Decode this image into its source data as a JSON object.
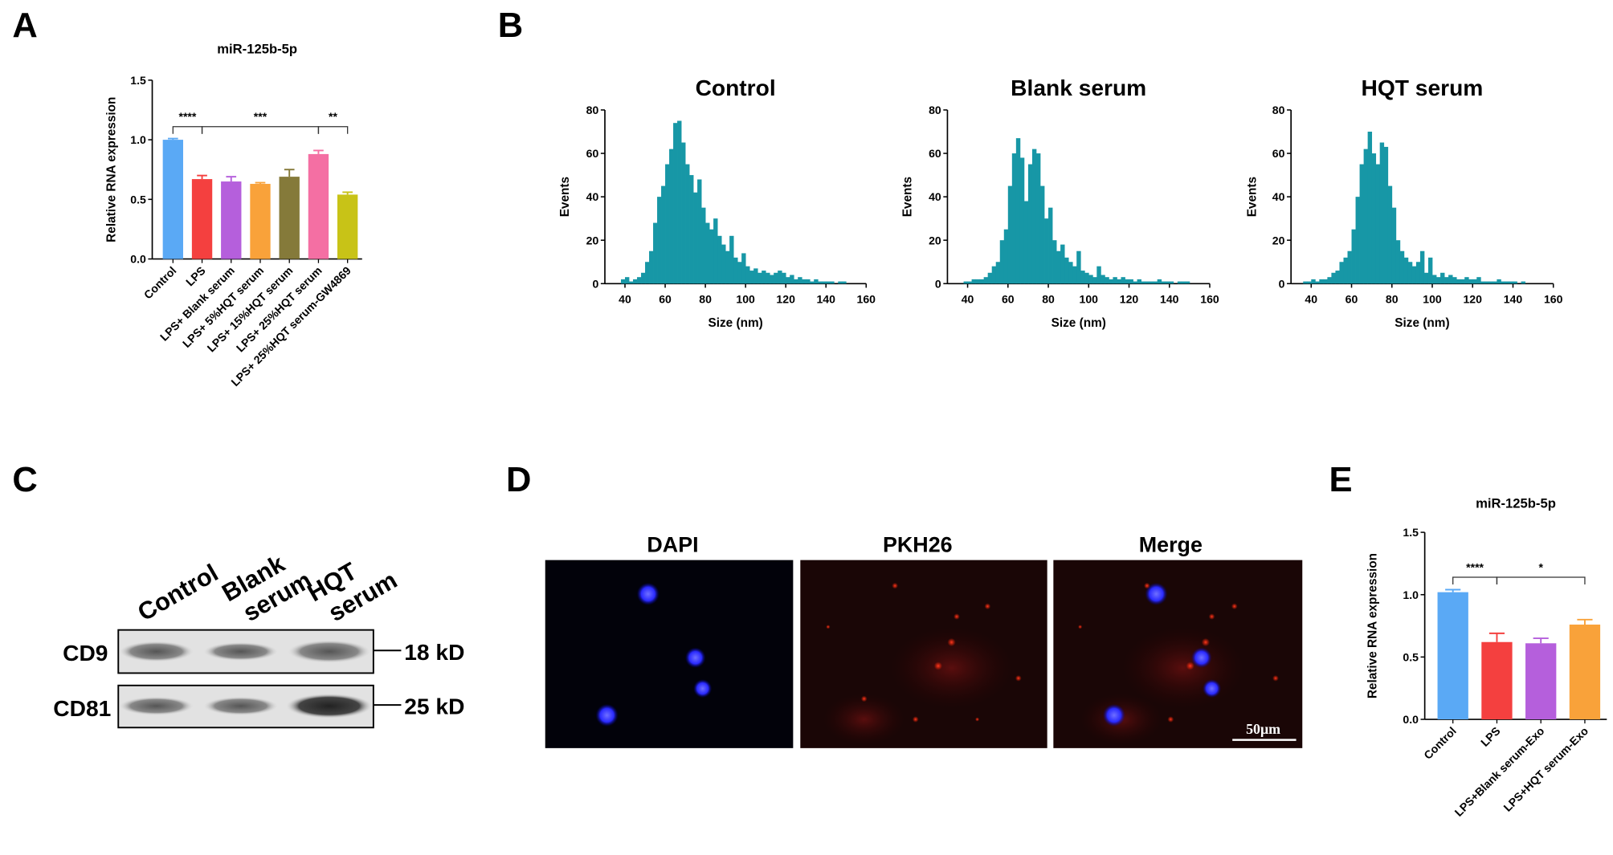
{
  "panels": [
    "A",
    "B",
    "C",
    "D",
    "E"
  ],
  "blot": {
    "columns": [
      [
        "Control"
      ],
      [
        "Blank",
        "serum"
      ],
      [
        "HQT",
        "serum"
      ]
    ],
    "rows": [
      "CD9",
      "CD81"
    ],
    "sizes": [
      "18 kD",
      "25 kD"
    ]
  },
  "microscopy": {
    "titles": [
      "DAPI",
      "PKH26",
      "Merge"
    ],
    "scale_bar": "50μm"
  },
  "chart_data": [
    {
      "type": "bar",
      "title": "miR-125b-5p",
      "ylabel": "Relative RNA expression",
      "categories": [
        "Control",
        "LPS",
        "LPS+ Blank serum",
        "LPS+ 5%HQT serum",
        "LPS+ 15%HQT serum",
        "LPS+ 25%HQT serum",
        "LPS+ 25%HQT serum-GW4869"
      ],
      "values": [
        1.0,
        0.67,
        0.65,
        0.63,
        0.69,
        0.88,
        0.54
      ],
      "errors": [
        0.01,
        0.03,
        0.04,
        0.01,
        0.06,
        0.03,
        0.02
      ],
      "colors": [
        "#5aa9f5",
        "#f4403f",
        "#b55fdc",
        "#f9a23a",
        "#857a3a",
        "#f46fa3",
        "#c8c317"
      ],
      "ylim": [
        0,
        1.5
      ],
      "yticks": [
        {
          "value": 0,
          "label": "0.0"
        },
        0.5,
        {
          "value": 1,
          "label": "1.0"
        },
        1.5
      ],
      "annotations": [
        {
          "text": "****",
          "between": [
            "Control",
            "LPS"
          ]
        },
        {
          "text": "***",
          "between": [
            "LPS",
            "LPS+ 25%HQT serum"
          ]
        },
        {
          "text": "**",
          "between": [
            "LPS+ 25%HQT serum",
            "LPS+ 25%HQT serum-GW4869"
          ]
        }
      ]
    },
    {
      "type": "histogram",
      "title": "Control",
      "xlabel": "Size (nm)",
      "ylabel": "Events",
      "color": "#1797a6",
      "bins": [
        36,
        38,
        40,
        42,
        44,
        46,
        48,
        50,
        52,
        54,
        56,
        58,
        60,
        62,
        64,
        66,
        68,
        70,
        72,
        74,
        76,
        78,
        80,
        82,
        84,
        86,
        88,
        90,
        92,
        94,
        96,
        98,
        100,
        102,
        104,
        106,
        108,
        110,
        112,
        114,
        116,
        118,
        120,
        122,
        124,
        126,
        128,
        130,
        132,
        134,
        136,
        138,
        140,
        142,
        144,
        146,
        148,
        150
      ],
      "values": [
        0,
        2,
        3,
        1,
        2,
        3,
        5,
        10,
        15,
        28,
        40,
        45,
        55,
        62,
        74,
        75,
        65,
        55,
        50,
        42,
        48,
        35,
        28,
        25,
        30,
        22,
        18,
        15,
        22,
        12,
        10,
        14,
        8,
        6,
        7,
        5,
        6,
        5,
        4,
        5,
        6,
        5,
        3,
        4,
        2,
        3,
        2,
        2,
        1,
        2,
        1,
        1,
        1,
        1,
        0,
        1,
        1
      ],
      "xlim": [
        30,
        160
      ],
      "xticks": [
        40,
        60,
        80,
        100,
        120,
        140,
        160
      ],
      "ylim": [
        0,
        80
      ],
      "yticks": [
        0,
        20,
        40,
        60,
        80
      ]
    },
    {
      "type": "histogram",
      "title": "Blank  serum",
      "xlabel": "Size (nm)",
      "ylabel": "Events",
      "color": "#1797a6",
      "bins": [
        36,
        38,
        40,
        42,
        44,
        46,
        48,
        50,
        52,
        54,
        56,
        58,
        60,
        62,
        64,
        66,
        68,
        70,
        72,
        74,
        76,
        78,
        80,
        82,
        84,
        86,
        88,
        90,
        92,
        94,
        96,
        98,
        100,
        102,
        104,
        106,
        108,
        110,
        112,
        114,
        116,
        118,
        120,
        122,
        124,
        126,
        128,
        130,
        132,
        134,
        136,
        138,
        140,
        142,
        144,
        146,
        148,
        150
      ],
      "values": [
        0,
        1,
        1,
        2,
        2,
        2,
        3,
        5,
        8,
        10,
        20,
        25,
        45,
        60,
        67,
        58,
        38,
        55,
        62,
        60,
        45,
        30,
        35,
        20,
        15,
        18,
        12,
        10,
        8,
        15,
        6,
        5,
        4,
        3,
        8,
        4,
        3,
        2,
        3,
        2,
        3,
        2,
        2,
        1,
        2,
        1,
        1,
        1,
        1,
        2,
        1,
        1,
        1,
        0,
        1,
        1,
        1
      ],
      "xlim": [
        30,
        160
      ],
      "xticks": [
        40,
        60,
        80,
        100,
        120,
        140,
        160
      ],
      "ylim": [
        0,
        80
      ],
      "yticks": [
        0,
        20,
        40,
        60,
        80
      ]
    },
    {
      "type": "histogram",
      "title": "HQT serum",
      "xlabel": "Size (nm)",
      "ylabel": "Events",
      "color": "#1797a6",
      "bins": [
        36,
        38,
        40,
        42,
        44,
        46,
        48,
        50,
        52,
        54,
        56,
        58,
        60,
        62,
        64,
        66,
        68,
        70,
        72,
        74,
        76,
        78,
        80,
        82,
        84,
        86,
        88,
        90,
        92,
        94,
        96,
        98,
        100,
        102,
        104,
        106,
        108,
        110,
        112,
        114,
        116,
        118,
        120,
        122,
        124,
        126,
        128,
        130,
        132,
        134,
        136,
        138,
        140,
        142,
        144,
        146,
        148,
        150
      ],
      "values": [
        1,
        1,
        2,
        1,
        2,
        2,
        3,
        5,
        6,
        10,
        12,
        15,
        25,
        40,
        55,
        62,
        70,
        60,
        55,
        65,
        63,
        45,
        35,
        20,
        15,
        12,
        10,
        8,
        10,
        15,
        5,
        12,
        4,
        3,
        5,
        3,
        4,
        3,
        2,
        2,
        3,
        2,
        2,
        3,
        1,
        1,
        1,
        1,
        2,
        1,
        1,
        1,
        1,
        0,
        1,
        0,
        0
      ],
      "xlim": [
        30,
        160
      ],
      "xticks": [
        40,
        60,
        80,
        100,
        120,
        140,
        160
      ],
      "ylim": [
        0,
        80
      ],
      "yticks": [
        0,
        20,
        40,
        60,
        80
      ]
    },
    {
      "type": "bar",
      "title": "miR-125b-5p",
      "ylabel": "Relative RNA expression",
      "categories": [
        "Control",
        "LPS",
        "LPS+Blank serum-Exo",
        "LPS+HQT serum-Exo"
      ],
      "values": [
        1.02,
        0.62,
        0.61,
        0.76
      ],
      "errors": [
        0.02,
        0.07,
        0.04,
        0.04
      ],
      "colors": [
        "#5aa9f5",
        "#f4403f",
        "#b55fdc",
        "#f9a23a"
      ],
      "ylim": [
        0,
        1.5
      ],
      "yticks": [
        {
          "value": 0,
          "label": "0.0"
        },
        0.5,
        {
          "value": 1,
          "label": "1.0"
        },
        1.5
      ],
      "annotations": [
        {
          "text": "****",
          "between": [
            "Control",
            "LPS"
          ]
        },
        {
          "text": "*",
          "between": [
            "LPS",
            "LPS+HQT serum-Exo"
          ]
        }
      ]
    }
  ]
}
